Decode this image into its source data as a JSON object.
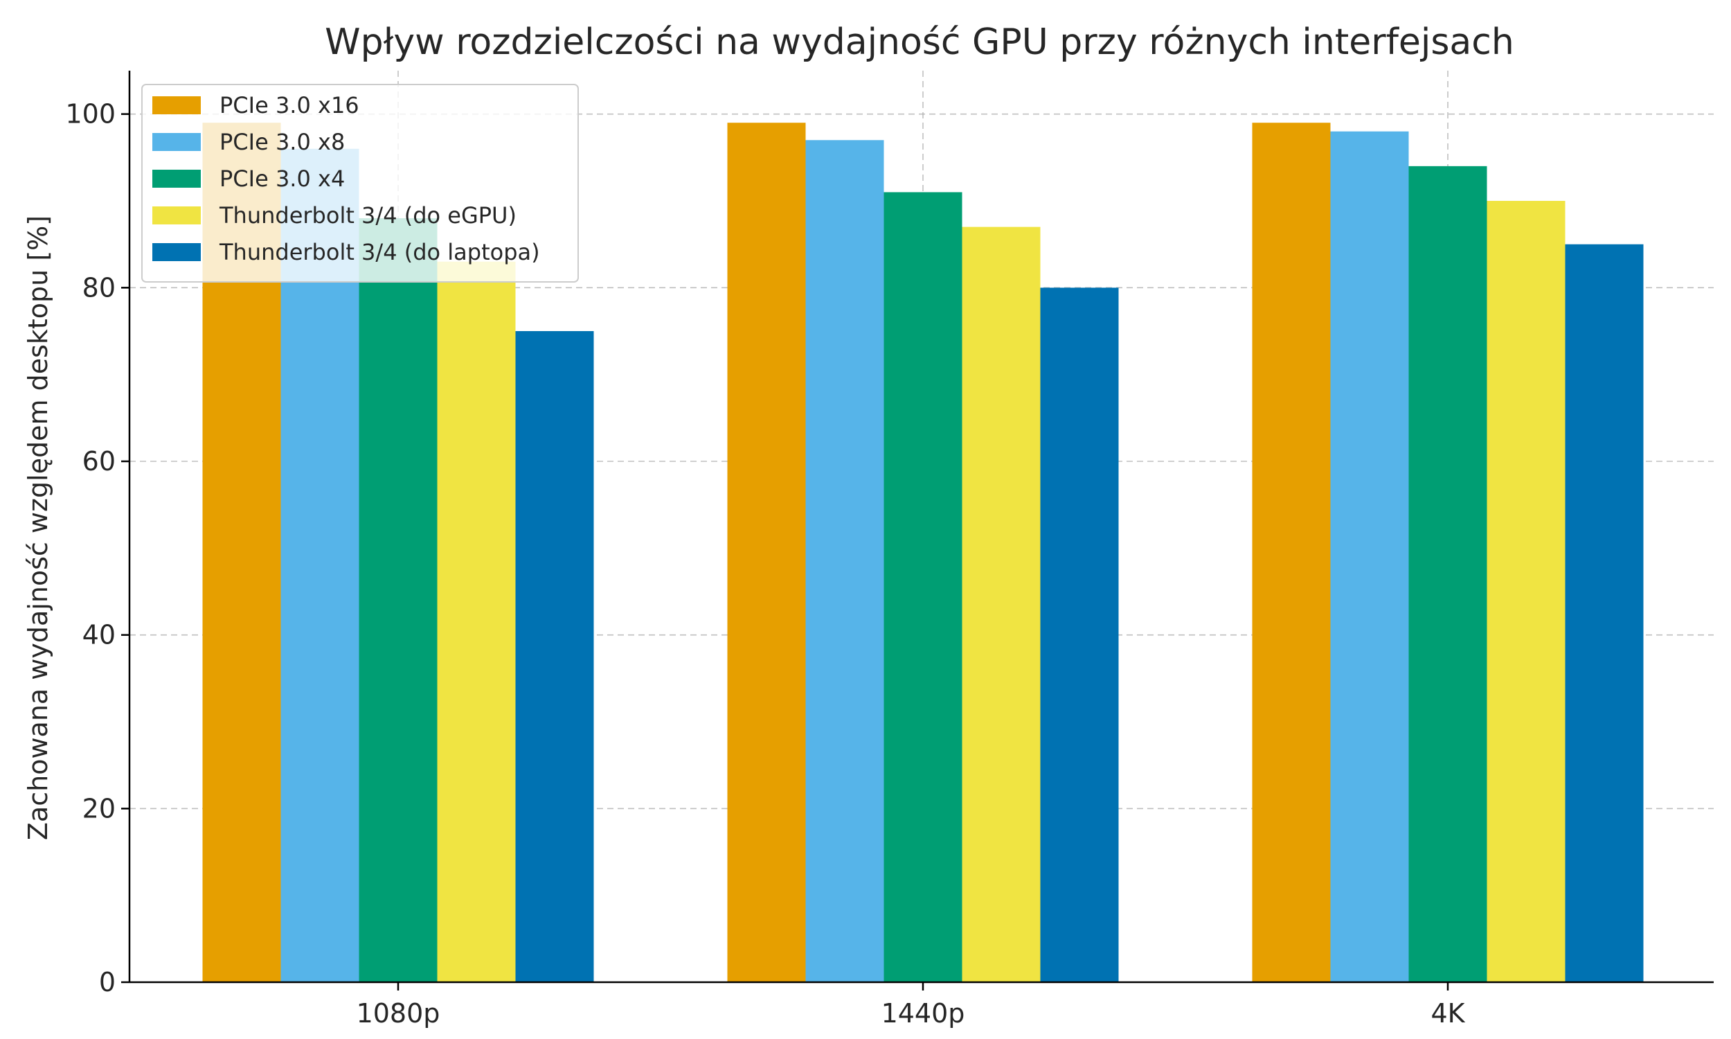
{
  "chart_data": {
    "type": "bar",
    "title": "Wpływ rozdzielczości na wydajność GPU przy różnych interfejsach",
    "xlabel": "",
    "ylabel": "Zachowana wydajność względem desktopu [%]",
    "categories": [
      "1080p",
      "1440p",
      "4K"
    ],
    "ylim": [
      0,
      105
    ],
    "yticks": [
      0,
      20,
      40,
      60,
      80,
      100
    ],
    "grid": true,
    "legend_position": "top-left",
    "series": [
      {
        "name": "PCIe 3.0 x16",
        "color": "#E69F00",
        "values": [
          99,
          99,
          99
        ]
      },
      {
        "name": "PCIe 3.0 x8",
        "color": "#56B4E9",
        "values": [
          96,
          97,
          98
        ]
      },
      {
        "name": "PCIe 3.0 x4",
        "color": "#009E73",
        "values": [
          88,
          91,
          94
        ]
      },
      {
        "name": "Thunderbolt 3/4 (do eGPU)",
        "color": "#F0E442",
        "values": [
          83,
          87,
          90
        ]
      },
      {
        "name": "Thunderbolt 3/4 (do laptopa)",
        "color": "#0072B2",
        "values": [
          75,
          80,
          85
        ]
      }
    ]
  }
}
